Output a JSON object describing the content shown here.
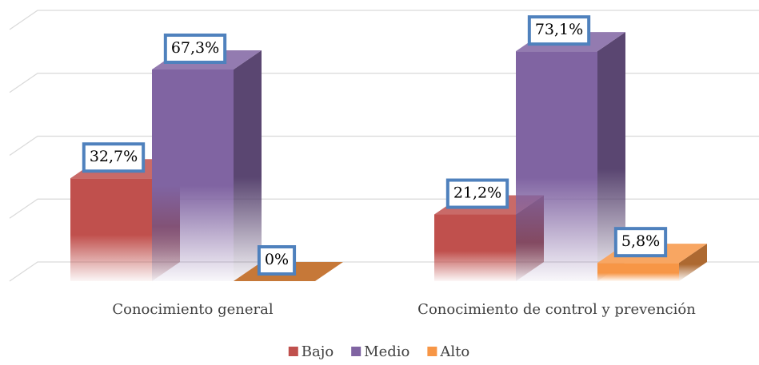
{
  "chart_data": {
    "type": "bar3d",
    "categories": [
      "Conocimiento general",
      "Conocimiento de control y prevención"
    ],
    "series": [
      {
        "name": "Bajo",
        "color": "#c0504d",
        "values": [
          32.7,
          21.2
        ],
        "value_labels": [
          "32,7%",
          "21,2%"
        ]
      },
      {
        "name": "Medio",
        "color": "#8064a2",
        "values": [
          67.3,
          73.1
        ],
        "value_labels": [
          "67,3%",
          "73,1%"
        ]
      },
      {
        "name": "Alto",
        "color": "#f79646",
        "values": [
          0,
          5.8
        ],
        "value_labels": [
          "0%",
          "5,8%"
        ]
      }
    ],
    "ylim": [
      0,
      80
    ],
    "yticks": [
      0,
      20,
      40,
      60,
      80
    ],
    "grid": true,
    "legend": "bottom"
  }
}
